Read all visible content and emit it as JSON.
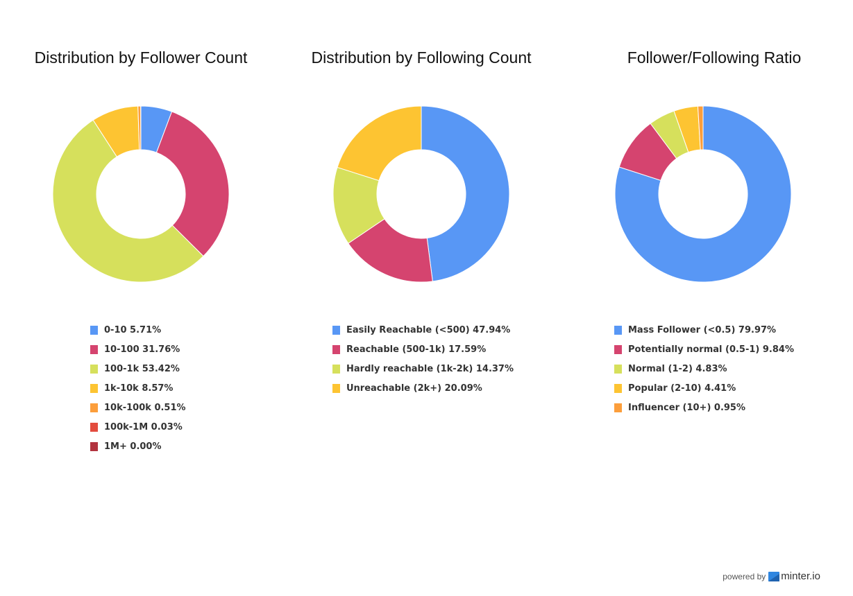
{
  "chart_data": [
    {
      "type": "pie",
      "title": "Distribution by Follower Count",
      "categories": [
        "0-10",
        "10-100",
        "100-1k",
        "1k-10k",
        "10k-100k",
        "100k-1M",
        "1M+"
      ],
      "values": [
        5.71,
        31.76,
        53.42,
        8.57,
        0.51,
        0.03,
        0.0
      ],
      "legend_labels": [
        "0-10 5.71%",
        "10-100 31.76%",
        "100-1k 53.42%",
        "1k-10k 8.57%",
        "10k-100k 0.51%",
        "100k-1M 0.03%",
        "1M+ 0.00%"
      ],
      "colors": [
        "#5897f5",
        "#d5446f",
        "#d6e05c",
        "#fdc432",
        "#fc9e3b",
        "#e34c3e",
        "#b2333f"
      ],
      "legend": "bottom"
    },
    {
      "type": "pie",
      "title": "Distribution by Following Count",
      "categories": [
        "Easily Reachable (<500)",
        "Reachable (500-1k)",
        "Hardly reachable (1k-2k)",
        "Unreachable (2k+)"
      ],
      "values": [
        47.94,
        17.59,
        14.37,
        20.09
      ],
      "legend_labels": [
        "Easily Reachable (<500) 47.94%",
        "Reachable (500-1k) 17.59%",
        "Hardly reachable (1k-2k) 14.37%",
        "Unreachable (2k+) 20.09%"
      ],
      "colors": [
        "#5897f5",
        "#d5446f",
        "#d6e05c",
        "#fdc432"
      ],
      "legend": "bottom"
    },
    {
      "type": "pie",
      "title": "Follower/Following Ratio",
      "categories": [
        "Mass Follower (<0.5)",
        "Potentially normal (0.5-1)",
        "Normal (1-2)",
        "Popular (2-10)",
        "Influencer (10+)"
      ],
      "values": [
        79.97,
        9.84,
        4.83,
        4.41,
        0.95
      ],
      "legend_labels": [
        "Mass Follower (<0.5) 79.97%",
        "Potentially normal (0.5-1) 9.84%",
        "Normal (1-2) 4.83%",
        "Popular (2-10) 4.41%",
        "Influencer (10+) 0.95%"
      ],
      "colors": [
        "#5897f5",
        "#d5446f",
        "#d6e05c",
        "#fdc432",
        "#fc9e3b"
      ],
      "legend": "bottom"
    }
  ],
  "footer": {
    "powered_by": "powered by",
    "brand": "minter.io",
    "brand_icon": "minter-logo-icon",
    "brand_color": "#2f86e0"
  }
}
